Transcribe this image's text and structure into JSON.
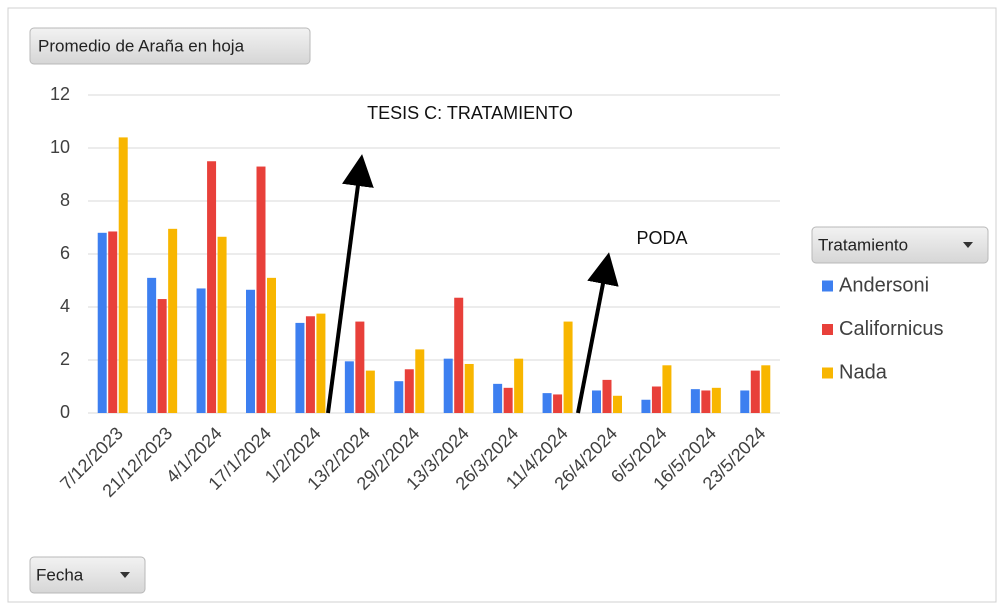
{
  "chart_data": {
    "type": "bar",
    "value_field_button": "Promedio de Araña en hoja",
    "legend_field_button": "Tratamiento",
    "axis_field_button": "Fecha",
    "categories": [
      "7/12/2023",
      "21/12/2023",
      "4/1/2024",
      "17/1/2024",
      "1/2/2024",
      "13/2/2024",
      "29/2/2024",
      "13/3/2024",
      "26/3/2024",
      "11/4/2024",
      "26/4/2024",
      "6/5/2024",
      "16/5/2024",
      "23/5/2024"
    ],
    "series": [
      {
        "name": "Andersoni",
        "color": "#3d7ff0",
        "values": [
          6.8,
          5.1,
          4.7,
          4.65,
          3.4,
          1.95,
          1.2,
          2.05,
          1.1,
          0.75,
          0.85,
          0.5,
          0.9,
          0.85
        ]
      },
      {
        "name": "Californicus",
        "color": "#e8403a",
        "values": [
          6.85,
          4.3,
          9.5,
          9.3,
          3.65,
          3.45,
          1.65,
          4.35,
          0.95,
          0.7,
          1.25,
          1.0,
          0.85,
          1.6
        ]
      },
      {
        "name": "Nada",
        "color": "#f8b600",
        "values": [
          10.4,
          6.95,
          6.65,
          5.1,
          3.75,
          1.6,
          2.4,
          1.85,
          2.05,
          3.45,
          0.65,
          1.8,
          0.95,
          1.8
        ]
      }
    ],
    "ylim": [
      0,
      12
    ],
    "yticks": [
      0,
      2,
      4,
      6,
      8,
      10,
      12
    ],
    "grid": true,
    "legend": "right",
    "annotations": [
      {
        "text": "TESIS C: TRATAMIENTO"
      },
      {
        "text": "PODA"
      }
    ]
  }
}
